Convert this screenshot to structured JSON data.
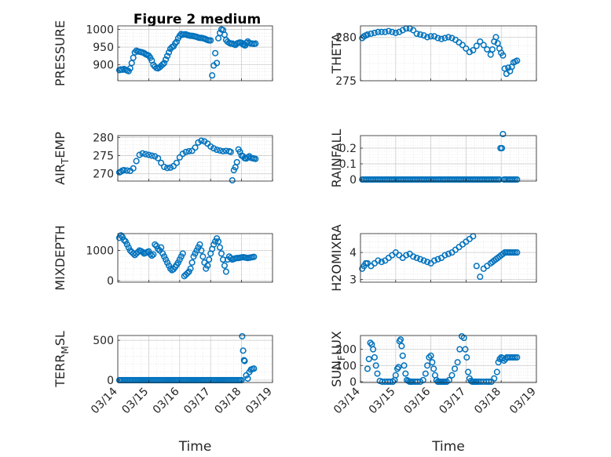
{
  "figure": {
    "title": "Figure 2 medium",
    "marker_color": "#0072BD"
  },
  "chart_data": [
    {
      "type": "scatter",
      "id": "pressure",
      "ylabel": "PRESSURE",
      "title": "Figure 2 medium",
      "yticks": [
        900,
        950,
        1000
      ],
      "ylim": [
        855,
        1010
      ],
      "xlim": [
        0,
        5
      ],
      "xticklabels": [],
      "grid": true,
      "x": [
        0.05,
        0.1,
        0.15,
        0.2,
        0.25,
        0.3,
        0.35,
        0.4,
        0.45,
        0.5,
        0.55,
        0.6,
        0.65,
        0.7,
        0.75,
        0.8,
        0.85,
        0.9,
        0.95,
        1.0,
        1.05,
        1.1,
        1.15,
        1.2,
        1.25,
        1.3,
        1.35,
        1.4,
        1.45,
        1.5,
        1.55,
        1.6,
        1.65,
        1.7,
        1.75,
        1.8,
        1.85,
        1.9,
        1.95,
        2.0,
        2.05,
        2.1,
        2.15,
        2.2,
        2.25,
        2.3,
        2.35,
        2.4,
        2.45,
        2.5,
        2.55,
        2.6,
        2.65,
        2.7,
        2.75,
        2.8,
        2.85,
        2.9,
        2.95,
        3.0,
        3.05,
        3.1,
        3.15,
        3.2,
        3.25,
        3.3,
        3.35,
        3.4,
        3.45,
        3.5,
        3.55,
        3.6,
        3.65,
        3.7,
        3.75,
        3.8,
        3.85,
        3.9,
        3.95,
        4.0,
        4.04,
        4.06,
        4.1,
        4.12,
        4.15,
        4.2,
        4.25,
        4.3,
        4.35,
        4.4,
        4.45
      ],
      "y": [
        885,
        887,
        886,
        888,
        886,
        884,
        882,
        890,
        905,
        920,
        935,
        940,
        938,
        937,
        936,
        935,
        933,
        930,
        928,
        926,
        920,
        912,
        900,
        895,
        891,
        890,
        893,
        897,
        901,
        905,
        915,
        925,
        935,
        945,
        950,
        952,
        960,
        965,
        975,
        982,
        987,
        985,
        986,
        986,
        984,
        983,
        982,
        982,
        981,
        980,
        979,
        977,
        976,
        976,
        975,
        974,
        972,
        970,
        969,
        969,
        870,
        898,
        933,
        905,
        975,
        990,
        1000,
        998,
        985,
        970,
        965,
        962,
        960,
        960,
        958,
        956,
        960,
        962,
        963,
        962,
        958,
        957,
        955,
        955,
        962,
        966,
        962,
        960,
        960,
        959,
        960
      ]
    },
    {
      "type": "scatter",
      "id": "theta",
      "ylabel": "THETA",
      "yticks": [
        275,
        280
      ],
      "ylim": [
        275,
        281.3
      ],
      "xlim": [
        0,
        5
      ],
      "xticklabels": [],
      "grid": true,
      "x": [
        0.05,
        0.1,
        0.15,
        0.2,
        0.3,
        0.4,
        0.5,
        0.6,
        0.7,
        0.8,
        0.9,
        1.0,
        1.1,
        1.2,
        1.3,
        1.4,
        1.5,
        1.6,
        1.7,
        1.8,
        1.9,
        2.0,
        2.1,
        2.2,
        2.3,
        2.4,
        2.5,
        2.6,
        2.7,
        2.8,
        2.9,
        3.0,
        3.1,
        3.2,
        3.3,
        3.4,
        3.5,
        3.6,
        3.7,
        3.75,
        3.8,
        3.85,
        3.9,
        3.95,
        4.0,
        4.05,
        4.1,
        4.15,
        4.2,
        4.25,
        4.3,
        4.35,
        4.4,
        4.45
      ],
      "y": [
        279.9,
        280.1,
        280.2,
        280.3,
        280.4,
        280.5,
        280.6,
        280.6,
        280.6,
        280.7,
        280.6,
        280.5,
        280.6,
        280.8,
        281.0,
        281.0,
        280.8,
        280.4,
        280.3,
        280.2,
        280.0,
        280.1,
        280.1,
        279.9,
        279.8,
        279.9,
        280.0,
        279.9,
        279.7,
        279.4,
        279.1,
        278.7,
        278.3,
        278.5,
        279.0,
        279.5,
        279.1,
        278.6,
        278.0,
        278.6,
        279.5,
        280.0,
        279.3,
        278.7,
        278.2,
        277.9,
        276.4,
        275.8,
        276.5,
        276.1,
        276.6,
        277.1,
        277.2,
        277.3
      ]
    },
    {
      "type": "scatter",
      "id": "air_temp",
      "ylabel": "AIR_TEMP",
      "yticks": [
        270,
        275,
        280
      ],
      "ylim": [
        268,
        280.5
      ],
      "xlim": [
        0,
        5
      ],
      "xticklabels": [],
      "grid": true,
      "x": [
        0.05,
        0.1,
        0.15,
        0.2,
        0.3,
        0.4,
        0.5,
        0.6,
        0.7,
        0.8,
        0.9,
        1.0,
        1.1,
        1.2,
        1.3,
        1.4,
        1.5,
        1.6,
        1.7,
        1.8,
        1.9,
        2.0,
        2.1,
        2.2,
        2.3,
        2.4,
        2.5,
        2.6,
        2.7,
        2.8,
        2.9,
        3.0,
        3.1,
        3.2,
        3.3,
        3.4,
        3.5,
        3.6,
        3.65,
        3.7,
        3.75,
        3.8,
        3.85,
        3.9,
        3.95,
        4.0,
        4.05,
        4.1,
        4.15,
        4.2,
        4.25,
        4.3,
        4.35,
        4.4,
        4.45
      ],
      "y": [
        270.4,
        270.6,
        270.9,
        271.0,
        270.9,
        270.8,
        271.5,
        273.5,
        275.2,
        275.6,
        275.4,
        275.2,
        275.0,
        274.8,
        274.3,
        273.0,
        271.9,
        271.6,
        271.7,
        272.1,
        273.0,
        274.5,
        275.5,
        276.0,
        276.2,
        276.3,
        277.2,
        278.6,
        279.1,
        278.9,
        278.3,
        277.5,
        277.0,
        276.6,
        276.4,
        276.2,
        276.3,
        276.2,
        276.0,
        268.2,
        271.0,
        271.8,
        273.2,
        276.7,
        276.0,
        275.0,
        274.8,
        274.3,
        274.2,
        274.5,
        274.8,
        274.4,
        274.3,
        274.2,
        274.1
      ]
    },
    {
      "type": "scatter",
      "id": "rainfall",
      "ylabel": "RAINFALL",
      "yticks": [
        0,
        0.1,
        0.2
      ],
      "ylim": [
        -0.01,
        0.28
      ],
      "xlim": [
        0,
        5
      ],
      "xticklabels": [],
      "grid": true,
      "x": [
        0.05,
        0.1,
        0.15,
        0.2,
        0.25,
        0.3,
        0.35,
        0.4,
        0.45,
        0.5,
        0.55,
        0.6,
        0.65,
        0.7,
        0.75,
        0.8,
        0.85,
        0.9,
        0.95,
        1.0,
        1.05,
        1.1,
        1.15,
        1.2,
        1.25,
        1.3,
        1.35,
        1.4,
        1.45,
        1.5,
        1.55,
        1.6,
        1.65,
        1.7,
        1.75,
        1.8,
        1.85,
        1.9,
        1.95,
        2.0,
        2.05,
        2.1,
        2.15,
        2.2,
        2.25,
        2.3,
        2.35,
        2.4,
        2.45,
        2.5,
        2.55,
        2.6,
        2.65,
        2.7,
        2.75,
        2.8,
        2.85,
        2.9,
        2.95,
        3.0,
        3.05,
        3.1,
        3.15,
        3.2,
        3.25,
        3.3,
        3.35,
        3.4,
        3.45,
        3.5,
        3.55,
        3.6,
        3.65,
        3.7,
        3.75,
        3.8,
        3.85,
        3.9,
        3.95,
        3.98,
        4.02,
        4.05,
        4.08,
        4.1,
        4.15,
        4.2,
        4.25,
        4.3,
        4.35,
        4.4,
        4.45
      ],
      "y": [
        0,
        0,
        0,
        0,
        0,
        0,
        0,
        0,
        0,
        0,
        0,
        0,
        0,
        0,
        0,
        0,
        0,
        0,
        0,
        0,
        0,
        0,
        0,
        0,
        0,
        0,
        0,
        0,
        0,
        0,
        0,
        0,
        0,
        0,
        0,
        0,
        0,
        0,
        0,
        0,
        0,
        0,
        0,
        0,
        0,
        0,
        0,
        0,
        0,
        0,
        0,
        0,
        0,
        0,
        0,
        0,
        0,
        0,
        0,
        0,
        0,
        0,
        0,
        0,
        0,
        0,
        0,
        0,
        0,
        0,
        0,
        0,
        0,
        0,
        0,
        0,
        0,
        0,
        0,
        0.2,
        0.2,
        0.29,
        0,
        0,
        0,
        0,
        0,
        0,
        0,
        0,
        0
      ]
    },
    {
      "type": "scatter",
      "id": "mixdepth",
      "ylabel": "MIXDEPTH",
      "yticks": [
        0,
        1000
      ],
      "ylim": [
        -50,
        1560
      ],
      "xlim": [
        0,
        5
      ],
      "xticklabels": [],
      "grid": true,
      "x": [
        0.05,
        0.1,
        0.15,
        0.2,
        0.25,
        0.3,
        0.35,
        0.4,
        0.45,
        0.5,
        0.55,
        0.6,
        0.65,
        0.7,
        0.75,
        0.8,
        0.85,
        0.9,
        0.95,
        1.0,
        1.05,
        1.1,
        1.15,
        1.2,
        1.25,
        1.3,
        1.35,
        1.4,
        1.45,
        1.5,
        1.55,
        1.6,
        1.65,
        1.7,
        1.75,
        1.8,
        1.85,
        1.9,
        1.95,
        2.0,
        2.05,
        2.1,
        2.15,
        2.2,
        2.25,
        2.3,
        2.35,
        2.4,
        2.45,
        2.5,
        2.55,
        2.6,
        2.65,
        2.7,
        2.75,
        2.8,
        2.85,
        2.9,
        2.95,
        3.0,
        3.05,
        3.1,
        3.15,
        3.2,
        3.25,
        3.3,
        3.35,
        3.4,
        3.45,
        3.5,
        3.55,
        3.6,
        3.65,
        3.7,
        3.75,
        3.8,
        3.85,
        3.9,
        3.95,
        4.0,
        4.05,
        4.1,
        4.15,
        4.2,
        4.25,
        4.3,
        4.35,
        4.4
      ],
      "y": [
        1420,
        1500,
        1450,
        1350,
        1300,
        1200,
        1100,
        1000,
        950,
        900,
        850,
        900,
        950,
        1000,
        980,
        950,
        900,
        920,
        950,
        970,
        880,
        830,
        870,
        1200,
        1150,
        1050,
        1000,
        1100,
        900,
        800,
        700,
        600,
        500,
        400,
        350,
        380,
        450,
        520,
        600,
        700,
        800,
        900,
        150,
        200,
        250,
        300,
        400,
        600,
        800,
        900,
        1000,
        1100,
        1200,
        1000,
        800,
        600,
        400,
        500,
        700,
        900,
        1050,
        1200,
        1300,
        1400,
        1300,
        1100,
        900,
        700,
        500,
        300,
        700,
        800,
        750,
        700,
        720,
        740,
        750,
        750,
        760,
        770,
        780,
        770,
        760,
        750,
        760,
        770,
        780,
        790
      ]
    },
    {
      "type": "scatter",
      "id": "h2omixra",
      "ylabel": "H2OMIXRA",
      "yticks": [
        3,
        4
      ],
      "ylim": [
        2.9,
        4.7
      ],
      "xlim": [
        0,
        5
      ],
      "xticklabels": [],
      "grid": true,
      "x": [
        0.05,
        0.1,
        0.15,
        0.2,
        0.3,
        0.4,
        0.5,
        0.6,
        0.7,
        0.8,
        0.9,
        1.0,
        1.1,
        1.2,
        1.3,
        1.4,
        1.5,
        1.6,
        1.7,
        1.8,
        1.9,
        2.0,
        2.1,
        2.2,
        2.3,
        2.4,
        2.5,
        2.6,
        2.7,
        2.8,
        2.9,
        3.0,
        3.1,
        3.2,
        3.3,
        3.4,
        3.5,
        3.6,
        3.7,
        3.75,
        3.8,
        3.85,
        3.9,
        3.95,
        4.0,
        4.05,
        4.1,
        4.15,
        4.2,
        4.25,
        4.3,
        4.35,
        4.4,
        4.45
      ],
      "y": [
        3.4,
        3.5,
        3.6,
        3.6,
        3.5,
        3.6,
        3.7,
        3.65,
        3.7,
        3.8,
        3.9,
        4.0,
        3.9,
        3.8,
        3.9,
        3.95,
        3.85,
        3.8,
        3.75,
        3.7,
        3.65,
        3.6,
        3.7,
        3.75,
        3.8,
        3.9,
        3.95,
        4.0,
        4.1,
        4.2,
        4.3,
        4.4,
        4.5,
        4.6,
        3.5,
        3.1,
        3.4,
        3.5,
        3.6,
        3.65,
        3.7,
        3.75,
        3.8,
        3.85,
        3.9,
        3.95,
        4.0,
        4.0,
        4.0,
        4.0,
        4.0,
        4.0,
        4.0,
        4.0
      ]
    },
    {
      "type": "scatter",
      "id": "terr_msl",
      "ylabel": "TERR_MSL",
      "yticks": [
        0,
        500
      ],
      "ylim": [
        -30,
        560
      ],
      "xlim": [
        0,
        5
      ],
      "xticklabels": [
        "03/14",
        "03/15",
        "03/16",
        "03/17",
        "03/18",
        "03/19"
      ],
      "xlabel": "Time",
      "grid": true,
      "x": [
        0.05,
        0.1,
        0.15,
        0.2,
        0.25,
        0.3,
        0.35,
        0.4,
        0.45,
        0.5,
        0.55,
        0.6,
        0.65,
        0.7,
        0.75,
        0.8,
        0.85,
        0.9,
        0.95,
        1.0,
        1.05,
        1.1,
        1.15,
        1.2,
        1.25,
        1.3,
        1.35,
        1.4,
        1.45,
        1.5,
        1.55,
        1.6,
        1.65,
        1.7,
        1.75,
        1.8,
        1.85,
        1.9,
        1.95,
        2.0,
        2.05,
        2.1,
        2.15,
        2.2,
        2.25,
        2.3,
        2.35,
        2.4,
        2.45,
        2.5,
        2.55,
        2.6,
        2.65,
        2.7,
        2.75,
        2.8,
        2.85,
        2.9,
        2.95,
        3.0,
        3.05,
        3.1,
        3.15,
        3.2,
        3.25,
        3.3,
        3.35,
        3.4,
        3.45,
        3.5,
        3.55,
        3.6,
        3.65,
        3.7,
        3.75,
        3.8,
        3.85,
        3.9,
        3.95,
        4.0,
        4.02,
        4.05,
        4.08,
        4.1,
        4.15,
        4.2,
        4.25,
        4.3,
        4.35,
        4.4
      ],
      "y": [
        0,
        0,
        0,
        0,
        0,
        0,
        0,
        0,
        0,
        0,
        0,
        0,
        0,
        0,
        0,
        0,
        0,
        0,
        0,
        0,
        0,
        0,
        0,
        0,
        0,
        0,
        0,
        0,
        0,
        0,
        0,
        0,
        0,
        0,
        0,
        0,
        0,
        0,
        0,
        0,
        0,
        0,
        0,
        0,
        0,
        0,
        0,
        0,
        0,
        0,
        0,
        0,
        0,
        0,
        0,
        0,
        0,
        0,
        0,
        0,
        0,
        0,
        0,
        0,
        0,
        0,
        0,
        0,
        0,
        0,
        0,
        0,
        0,
        0,
        0,
        0,
        0,
        0,
        0,
        0,
        550,
        370,
        250,
        240,
        60,
        20,
        100,
        130,
        140,
        145
      ]
    },
    {
      "type": "scatter",
      "id": "sun_flux",
      "ylabel": "SUN_FLUX",
      "yticks": [
        0,
        100,
        200
      ],
      "ylim": [
        -5,
        285
      ],
      "xlim": [
        0,
        5
      ],
      "xticklabels": [
        "03/14",
        "03/15",
        "03/16",
        "03/17",
        "03/18",
        "03/19"
      ],
      "xlabel": "Time",
      "grid": true,
      "x": [
        0.2,
        0.24,
        0.28,
        0.32,
        0.36,
        0.4,
        0.44,
        0.48,
        0.55,
        0.62,
        0.7,
        0.78,
        0.85,
        0.92,
        0.97,
        1.0,
        1.05,
        1.08,
        1.11,
        1.14,
        1.17,
        1.2,
        1.24,
        1.28,
        1.32,
        1.36,
        1.4,
        1.44,
        1.48,
        1.55,
        1.62,
        1.7,
        1.78,
        1.85,
        1.9,
        1.95,
        2.0,
        2.04,
        2.08,
        2.12,
        2.16,
        2.2,
        2.24,
        2.28,
        2.32,
        2.36,
        2.4,
        2.45,
        2.52,
        2.6,
        2.68,
        2.76,
        2.82,
        2.88,
        2.94,
        2.98,
        3.02,
        3.06,
        3.1,
        3.14,
        3.18,
        3.22,
        3.26,
        3.3,
        3.35,
        3.42,
        3.5,
        3.58,
        3.65,
        3.72,
        3.8,
        3.88,
        3.92,
        3.96,
        4.0,
        4.04,
        4.08,
        4.12,
        4.16,
        4.2,
        4.25,
        4.3,
        4.35,
        4.4,
        4.45
      ],
      "y": [
        80,
        140,
        240,
        230,
        200,
        150,
        100,
        50,
        5,
        0,
        0,
        0,
        0,
        0,
        10,
        40,
        80,
        90,
        250,
        260,
        220,
        160,
        100,
        50,
        10,
        5,
        0,
        0,
        0,
        0,
        0,
        0,
        10,
        50,
        100,
        150,
        160,
        120,
        80,
        40,
        10,
        0,
        0,
        0,
        0,
        0,
        0,
        0,
        10,
        40,
        80,
        120,
        200,
        280,
        270,
        200,
        150,
        60,
        20,
        5,
        0,
        0,
        0,
        0,
        0,
        0,
        0,
        0,
        0,
        0,
        20,
        60,
        120,
        140,
        150,
        145,
        130,
        140,
        150,
        150,
        150,
        150,
        150,
        150,
        150
      ]
    }
  ]
}
